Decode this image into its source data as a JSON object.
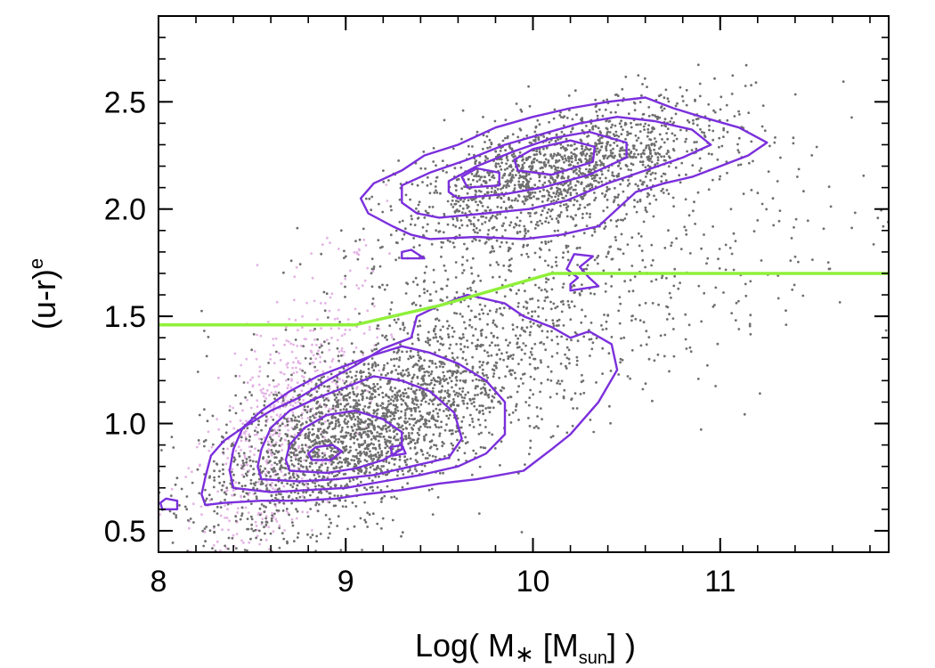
{
  "chart_data": {
    "type": "scatter",
    "title": "",
    "xlabel": "Log( M∗ [Msun] )",
    "xlabel_parts": {
      "prefix": "Log( M",
      "star": "∗",
      "mid": " [M",
      "sub": "sun",
      "suffix": "] )"
    },
    "ylabel": "(u-r)^e",
    "ylabel_parts": {
      "base": "(u-r)",
      "sup": "e"
    },
    "xlim": [
      8.0,
      11.9
    ],
    "ylim": [
      0.4,
      2.9
    ],
    "xticks": [
      8,
      9,
      10,
      11
    ],
    "xtick_labels": [
      "8",
      "9",
      "10",
      "11"
    ],
    "yticks": [
      0.5,
      1.0,
      1.5,
      2.0,
      2.5
    ],
    "ytick_labels": [
      "0.5",
      "1.0",
      "1.5",
      "2.0",
      "2.5"
    ],
    "x_minor_step": 0.2,
    "y_minor_step": 0.1,
    "colors": {
      "points": "#6e6e6e",
      "points_pink": "#e3b4e4",
      "contour": "#7b2fdc",
      "divider": "#8ff03a",
      "frame": "#000000"
    },
    "divider_line": {
      "name": "red/blue separation",
      "x": [
        8.0,
        9.05,
        9.5,
        10.1,
        11.9
      ],
      "y": [
        1.46,
        1.46,
        1.55,
        1.7,
        1.7
      ]
    },
    "scatter_populations": [
      {
        "name": "gray galaxies",
        "color": "#6e6e6e"
      },
      {
        "name": "pink galaxies",
        "color": "#e3b4e4"
      }
    ],
    "density_regions": {
      "red_sequence_peak": {
        "x": 10.0,
        "y": 2.22
      },
      "blue_cloud_peak": {
        "x": 8.9,
        "y": 0.87
      }
    },
    "contours": [
      {
        "group": "blue",
        "level": 1,
        "points": [
          [
            8.25,
            0.62
          ],
          [
            8.35,
            0.63
          ],
          [
            8.55,
            0.64
          ],
          [
            8.75,
            0.64
          ],
          [
            8.95,
            0.65
          ],
          [
            9.1,
            0.67
          ],
          [
            9.3,
            0.69
          ],
          [
            9.5,
            0.72
          ],
          [
            9.7,
            0.74
          ],
          [
            9.95,
            0.78
          ],
          [
            10.1,
            0.88
          ],
          [
            10.2,
            0.95
          ],
          [
            10.35,
            1.1
          ],
          [
            10.45,
            1.25
          ],
          [
            10.42,
            1.37
          ],
          [
            10.3,
            1.43
          ],
          [
            10.2,
            1.4
          ],
          [
            10.1,
            1.45
          ],
          [
            9.95,
            1.5
          ],
          [
            9.85,
            1.56
          ],
          [
            9.65,
            1.6
          ],
          [
            9.5,
            1.55
          ],
          [
            9.38,
            1.5
          ],
          [
            9.35,
            1.4
          ],
          [
            9.2,
            1.35
          ],
          [
            9.05,
            1.27
          ],
          [
            8.9,
            1.2
          ],
          [
            8.75,
            1.12
          ],
          [
            8.6,
            1.06
          ],
          [
            8.45,
            0.98
          ],
          [
            8.35,
            0.92
          ],
          [
            8.28,
            0.85
          ],
          [
            8.25,
            0.75
          ],
          [
            8.23,
            0.67
          ]
        ]
      },
      {
        "group": "blue",
        "level": 2,
        "points": [
          [
            8.4,
            0.7
          ],
          [
            8.6,
            0.68
          ],
          [
            8.8,
            0.69
          ],
          [
            9.0,
            0.7
          ],
          [
            9.2,
            0.73
          ],
          [
            9.4,
            0.76
          ],
          [
            9.6,
            0.8
          ],
          [
            9.75,
            0.86
          ],
          [
            9.85,
            0.95
          ],
          [
            9.85,
            1.1
          ],
          [
            9.75,
            1.2
          ],
          [
            9.6,
            1.28
          ],
          [
            9.45,
            1.33
          ],
          [
            9.3,
            1.36
          ],
          [
            9.15,
            1.32
          ],
          [
            9.0,
            1.27
          ],
          [
            8.85,
            1.22
          ],
          [
            8.7,
            1.15
          ],
          [
            8.55,
            1.06
          ],
          [
            8.45,
            0.98
          ],
          [
            8.4,
            0.88
          ],
          [
            8.38,
            0.78
          ]
        ]
      },
      {
        "group": "blue",
        "level": 3,
        "points": [
          [
            8.55,
            0.74
          ],
          [
            8.75,
            0.73
          ],
          [
            8.95,
            0.74
          ],
          [
            9.15,
            0.76
          ],
          [
            9.35,
            0.8
          ],
          [
            9.55,
            0.84
          ],
          [
            9.62,
            0.93
          ],
          [
            9.58,
            1.05
          ],
          [
            9.45,
            1.15
          ],
          [
            9.3,
            1.2
          ],
          [
            9.15,
            1.22
          ],
          [
            9.0,
            1.17
          ],
          [
            8.85,
            1.12
          ],
          [
            8.7,
            1.06
          ],
          [
            8.6,
            0.98
          ],
          [
            8.55,
            0.88
          ],
          [
            8.53,
            0.8
          ]
        ]
      },
      {
        "group": "blue",
        "level": 4,
        "points": [
          [
            8.7,
            0.78
          ],
          [
            8.9,
            0.77
          ],
          [
            9.05,
            0.79
          ],
          [
            9.2,
            0.83
          ],
          [
            9.3,
            0.88
          ],
          [
            9.3,
            0.96
          ],
          [
            9.2,
            1.02
          ],
          [
            9.05,
            1.06
          ],
          [
            8.9,
            1.04
          ],
          [
            8.78,
            0.98
          ],
          [
            8.7,
            0.9
          ],
          [
            8.68,
            0.83
          ]
        ]
      },
      {
        "group": "blue",
        "level": 5,
        "points": [
          [
            8.82,
            0.83
          ],
          [
            8.92,
            0.83
          ],
          [
            8.98,
            0.87
          ],
          [
            8.93,
            0.9
          ],
          [
            8.84,
            0.89
          ],
          [
            8.8,
            0.86
          ]
        ]
      },
      {
        "group": "blue",
        "level": 6,
        "points": [
          [
            9.25,
            0.85
          ],
          [
            9.32,
            0.86
          ],
          [
            9.3,
            0.9
          ],
          [
            9.24,
            0.89
          ]
        ]
      },
      {
        "group": "edge",
        "level": 1,
        "points": [
          [
            8.02,
            0.6
          ],
          [
            8.1,
            0.6
          ],
          [
            8.1,
            0.64
          ],
          [
            8.04,
            0.65
          ],
          [
            8.01,
            0.63
          ]
        ]
      },
      {
        "group": "edge",
        "level": 1,
        "points": [
          [
            10.2,
            1.62
          ],
          [
            10.35,
            1.64
          ],
          [
            10.3,
            1.68
          ],
          [
            10.25,
            1.73
          ],
          [
            10.32,
            1.78
          ],
          [
            10.22,
            1.79
          ],
          [
            10.18,
            1.72
          ],
          [
            10.24,
            1.68
          ],
          [
            10.2,
            1.65
          ]
        ]
      },
      {
        "group": "edge",
        "level": 1,
        "points": [
          [
            9.3,
            1.77
          ],
          [
            9.42,
            1.77
          ],
          [
            9.35,
            1.81
          ],
          [
            9.3,
            1.8
          ]
        ]
      },
      {
        "group": "red",
        "level": 1,
        "points": [
          [
            9.45,
            1.86
          ],
          [
            9.7,
            1.87
          ],
          [
            9.95,
            1.86
          ],
          [
            10.15,
            1.88
          ],
          [
            10.35,
            1.92
          ],
          [
            10.45,
            2.0
          ],
          [
            10.55,
            2.08
          ],
          [
            10.7,
            2.12
          ],
          [
            10.85,
            2.15
          ],
          [
            11.0,
            2.2
          ],
          [
            11.15,
            2.25
          ],
          [
            11.25,
            2.31
          ],
          [
            11.1,
            2.38
          ],
          [
            10.9,
            2.43
          ],
          [
            10.75,
            2.47
          ],
          [
            10.6,
            2.52
          ],
          [
            10.4,
            2.5
          ],
          [
            10.2,
            2.47
          ],
          [
            10.0,
            2.43
          ],
          [
            9.8,
            2.38
          ],
          [
            9.6,
            2.3
          ],
          [
            9.42,
            2.25
          ],
          [
            9.3,
            2.18
          ],
          [
            9.15,
            2.12
          ],
          [
            9.08,
            2.05
          ],
          [
            9.12,
            1.98
          ],
          [
            9.25,
            1.92
          ],
          [
            9.35,
            1.88
          ]
        ]
      },
      {
        "group": "red",
        "level": 2,
        "points": [
          [
            9.5,
            1.96
          ],
          [
            9.75,
            1.98
          ],
          [
            9.98,
            2.0
          ],
          [
            10.18,
            2.04
          ],
          [
            10.4,
            2.12
          ],
          [
            10.6,
            2.18
          ],
          [
            10.8,
            2.24
          ],
          [
            10.95,
            2.3
          ],
          [
            10.85,
            2.37
          ],
          [
            10.65,
            2.41
          ],
          [
            10.45,
            2.43
          ],
          [
            10.25,
            2.4
          ],
          [
            10.05,
            2.35
          ],
          [
            9.85,
            2.3
          ],
          [
            9.65,
            2.23
          ],
          [
            9.45,
            2.17
          ],
          [
            9.3,
            2.11
          ],
          [
            9.3,
            2.03
          ],
          [
            9.38,
            1.98
          ]
        ]
      },
      {
        "group": "red",
        "level": 3,
        "points": [
          [
            9.6,
            2.05
          ],
          [
            9.85,
            2.07
          ],
          [
            10.05,
            2.1
          ],
          [
            10.3,
            2.16
          ],
          [
            10.5,
            2.24
          ],
          [
            10.5,
            2.31
          ],
          [
            10.3,
            2.36
          ],
          [
            10.1,
            2.33
          ],
          [
            9.9,
            2.27
          ],
          [
            9.7,
            2.2
          ],
          [
            9.55,
            2.13
          ],
          [
            9.55,
            2.08
          ]
        ]
      },
      {
        "group": "red",
        "level": 4,
        "points": [
          [
            9.65,
            2.1
          ],
          [
            9.82,
            2.11
          ],
          [
            9.82,
            2.17
          ],
          [
            9.7,
            2.19
          ],
          [
            9.62,
            2.15
          ]
        ]
      },
      {
        "group": "red",
        "level": 4,
        "points": [
          [
            9.92,
            2.18
          ],
          [
            10.1,
            2.16
          ],
          [
            10.32,
            2.22
          ],
          [
            10.33,
            2.29
          ],
          [
            10.2,
            2.32
          ],
          [
            10.0,
            2.28
          ],
          [
            9.9,
            2.23
          ]
        ]
      }
    ]
  }
}
